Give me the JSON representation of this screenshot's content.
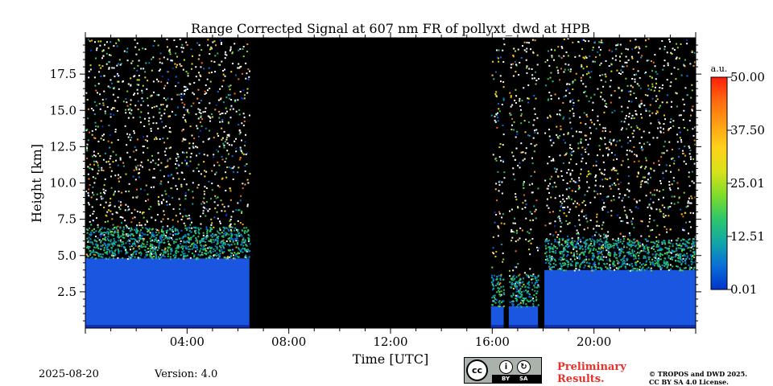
{
  "chart_data": {
    "type": "heatmap",
    "title": "Range Corrected Signal at 607 nm FR of pollyxt_dwd at HPB",
    "xlabel": "Time [UTC]",
    "ylabel": "Height [km]",
    "xlim_hours": [
      0,
      24
    ],
    "ylim_km": [
      0,
      20
    ],
    "x_ticks": [
      {
        "value": 4,
        "label": "04:00"
      },
      {
        "value": 8,
        "label": "08:00"
      },
      {
        "value": 12,
        "label": "12:00"
      },
      {
        "value": 16,
        "label": "16:00"
      },
      {
        "value": 20,
        "label": "20:00"
      }
    ],
    "y_ticks": [
      {
        "value": 2.5,
        "label": "2.5"
      },
      {
        "value": 5.0,
        "label": "5.0"
      },
      {
        "value": 7.5,
        "label": "7.5"
      },
      {
        "value": 10.0,
        "label": "10.0"
      },
      {
        "value": 12.5,
        "label": "12.5"
      },
      {
        "value": 15.0,
        "label": "15.0"
      },
      {
        "value": 17.5,
        "label": "17.5"
      }
    ],
    "colorbar": {
      "unit": "a.u.",
      "min": 0.01,
      "max": 50.0,
      "ticks": [
        {
          "value": 0.01,
          "label": "0.01"
        },
        {
          "value": 12.51,
          "label": "12.51"
        },
        {
          "value": 25.01,
          "label": "25.01"
        },
        {
          "value": 37.5,
          "label": "37.50"
        },
        {
          "value": 50.0,
          "label": "50.00"
        }
      ],
      "colors": [
        "#0033cc",
        "#0a6fd8",
        "#12a7a8",
        "#2ec76a",
        "#7fdc2a",
        "#d8e21a",
        "#ffd21a",
        "#ffa014",
        "#ff6a0e",
        "#ff1e0a"
      ]
    },
    "grid": false,
    "no_data_color": "#000000",
    "data_segments": [
      {
        "start_hour": 0.0,
        "end_hour": 6.45,
        "boundary_layer_top_km": 4.8,
        "noisy_signal_above_km": 6.0
      },
      {
        "start_hour": 15.95,
        "end_hour": 16.45,
        "boundary_layer_top_km": 1.5,
        "noisy_signal_above_km": 1.5
      },
      {
        "start_hour": 16.65,
        "end_hour": 17.8,
        "boundary_layer_top_km": 1.5,
        "noisy_signal_above_km": 1.5
      },
      {
        "start_hour": 18.05,
        "end_hour": 24.0,
        "boundary_layer_top_km": 4.0,
        "noisy_signal_above_km": 5.5
      }
    ]
  },
  "footer": {
    "date": "2025-08-20",
    "version": "Version: 4.0",
    "preliminary": "Preliminary Results.",
    "copyright_line1": "© TROPOS and DWD 2025.",
    "copyright_line2": "CC BY SA 4.0 License.",
    "license_logo": {
      "circle": "cc",
      "by": "BY",
      "sa": "SA"
    }
  }
}
